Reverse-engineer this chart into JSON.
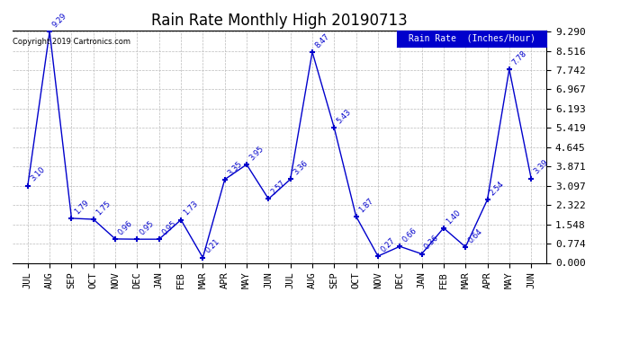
{
  "title": "Rain Rate Monthly High 20190713",
  "copyright": "Copyright 2019 Cartronics.com",
  "categories": [
    "JUL",
    "AUG",
    "SEP",
    "OCT",
    "NOV",
    "DEC",
    "JAN",
    "FEB",
    "MAR",
    "APR",
    "MAY",
    "JUN",
    "JUL",
    "AUG",
    "SEP",
    "OCT",
    "NOV",
    "DEC",
    "JAN",
    "FEB",
    "MAR",
    "APR",
    "MAY",
    "JUN"
  ],
  "values": [
    3.1,
    9.29,
    1.79,
    1.75,
    0.96,
    0.95,
    0.95,
    1.73,
    0.21,
    3.35,
    3.95,
    2.57,
    3.36,
    8.47,
    5.43,
    1.87,
    0.27,
    0.66,
    0.36,
    1.4,
    0.64,
    2.54,
    7.78,
    3.39
  ],
  "ylim_min": 0.0,
  "ylim_max": 9.29,
  "yticks": [
    0.0,
    0.774,
    1.548,
    2.322,
    3.097,
    3.871,
    4.645,
    5.419,
    6.193,
    6.967,
    7.742,
    8.516,
    9.29
  ],
  "line_color": "#0000cc",
  "bg_color": "#ffffff",
  "grid_color": "#bbbbbb",
  "title_color": "#000000",
  "label_color": "#0000cc",
  "legend_bg": "#0000cc",
  "legend_text": "Rain Rate  (Inches/Hour)",
  "legend_text_color": "#ffffff",
  "copyright_color": "#000000"
}
